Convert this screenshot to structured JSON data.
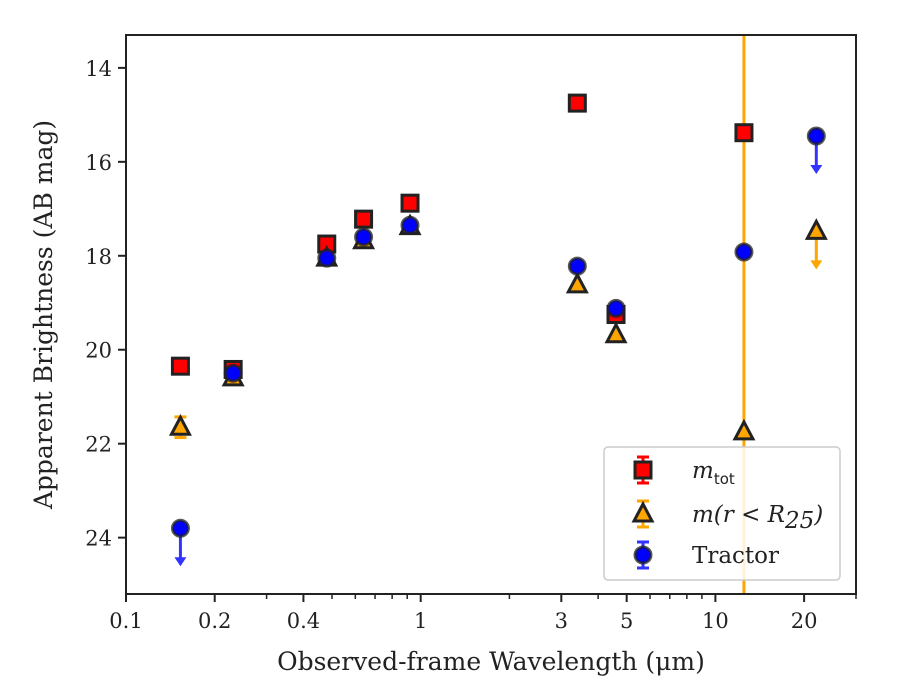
{
  "chart_data": {
    "type": "scatter",
    "xlabel": "Observed-frame Wavelength (μm)",
    "ylabel": "Apparent Brightness (AB mag)",
    "xscale": "log",
    "yaxis_inverted": true,
    "xlim": [
      0.1,
      30
    ],
    "ylim": [
      25.2,
      13.3
    ],
    "xticks": [
      0.1,
      0.2,
      0.4,
      1,
      3,
      5,
      10,
      20
    ],
    "xtick_labels": [
      "0.1",
      "0.2",
      "0.4",
      "1",
      "3",
      "5",
      "10",
      "20"
    ],
    "yticks": [
      14,
      16,
      18,
      20,
      22,
      24
    ],
    "ytick_labels": [
      "14",
      "16",
      "18",
      "20",
      "22",
      "24"
    ],
    "vertical_line": {
      "x": 12.5,
      "color": "#ffa500"
    },
    "legend_position": "lower-right",
    "series": [
      {
        "name": "m_tot",
        "legend": {
          "symbol": "m",
          "sub": "tot",
          "suffix": ""
        },
        "marker": "square",
        "color": "#ff0000",
        "errcolor": "#ff0000",
        "points": [
          {
            "x": 0.153,
            "y": 20.35
          },
          {
            "x": 0.231,
            "y": 20.42
          },
          {
            "x": 0.48,
            "y": 17.75
          },
          {
            "x": 0.64,
            "y": 17.22
          },
          {
            "x": 0.92,
            "y": 16.88
          },
          {
            "x": 3.4,
            "y": 14.75
          },
          {
            "x": 4.6,
            "y": 19.25
          },
          {
            "x": 12.5,
            "y": 15.38
          }
        ]
      },
      {
        "name": "m(r<R25)",
        "legend": {
          "symbol": "m(r < R",
          "sub": "25",
          "suffix": ")"
        },
        "marker": "triangle",
        "color": "#ffa500",
        "errcolor": "#ffa500",
        "points": [
          {
            "x": 0.153,
            "y": 21.65,
            "err": 0.22
          },
          {
            "x": 0.231,
            "y": 20.6
          },
          {
            "x": 0.48,
            "y": 18.05
          },
          {
            "x": 0.64,
            "y": 17.68
          },
          {
            "x": 0.92,
            "y": 17.38
          },
          {
            "x": 3.4,
            "y": 18.62
          },
          {
            "x": 4.6,
            "y": 19.68
          },
          {
            "x": 12.5,
            "y": 21.75
          },
          {
            "x": 22.0,
            "y": 17.48,
            "upper_limit": true
          }
        ]
      },
      {
        "name": "Tractor",
        "legend": {
          "symbol": "",
          "sub": "",
          "suffix": "Tractor"
        },
        "marker": "circle",
        "color": "#0000ff",
        "errcolor": "#3333ff",
        "points": [
          {
            "x": 0.153,
            "y": 23.8,
            "upper_limit": true
          },
          {
            "x": 0.231,
            "y": 20.5
          },
          {
            "x": 0.48,
            "y": 18.05
          },
          {
            "x": 0.64,
            "y": 17.6
          },
          {
            "x": 0.92,
            "y": 17.35
          },
          {
            "x": 3.4,
            "y": 18.22
          },
          {
            "x": 4.6,
            "y": 19.12
          },
          {
            "x": 12.5,
            "y": 17.92
          },
          {
            "x": 22.0,
            "y": 15.45,
            "upper_limit": true
          }
        ]
      }
    ]
  }
}
